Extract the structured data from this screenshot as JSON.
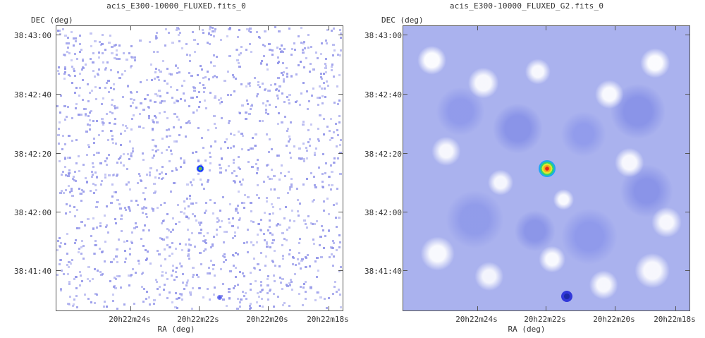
{
  "panels": [
    {
      "title": "acis_E300-10000_FLUXED.fits_0",
      "ylabel": "DEC (deg)",
      "xlabel": "RA (deg)",
      "yticks": [
        "38:43:00",
        "38:42:40",
        "38:42:20",
        "38:42:00",
        "38:41:40"
      ],
      "xticks": [
        "20h22m24s",
        "20h22m22s",
        "20h22m20s",
        "20h22m18s"
      ],
      "image_style": "raw-count-map"
    },
    {
      "title": "acis_E300-10000_FLUXED_G2.fits_0",
      "ylabel": "DEC (deg)",
      "xlabel": "RA (deg)",
      "yticks": [
        "38:43:00",
        "38:42:40",
        "38:42:20",
        "38:42:00",
        "38:41:40"
      ],
      "xticks": [
        "20h22m24s",
        "20h22m22s",
        "20h22m20s",
        "20h22m18s"
      ],
      "image_style": "gaussian-smoothed-map"
    }
  ],
  "colors": {
    "axis": "#555555",
    "raw_dot": "#8f92e8",
    "smooth_background": "#aab2ee",
    "source_hot": "#e3261f"
  }
}
